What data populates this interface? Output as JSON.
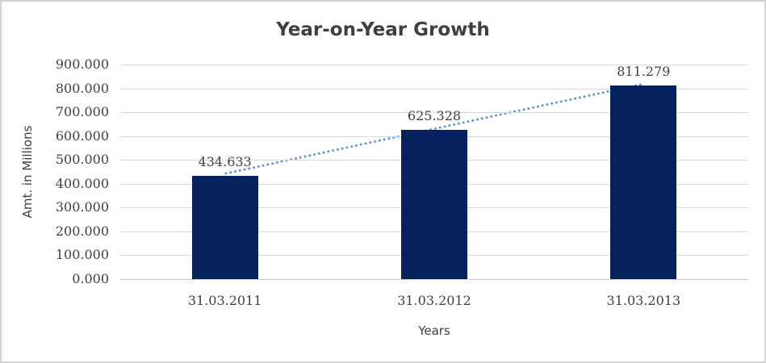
{
  "chart_data": {
    "type": "bar",
    "title": "Year-on-Year Growth",
    "xlabel": "Years",
    "ylabel": "Amt. in Millions",
    "categories": [
      "31.03.2011",
      "31.03.2012",
      "31.03.2013"
    ],
    "values": [
      434.633,
      625.328,
      811.279
    ],
    "data_labels": [
      "434.633",
      "625.328",
      "811.279"
    ],
    "y_ticks": [
      {
        "value": 0,
        "label": "0.000"
      },
      {
        "value": 100,
        "label": "100.000"
      },
      {
        "value": 200,
        "label": "200.000"
      },
      {
        "value": 300,
        "label": "300.000"
      },
      {
        "value": 400,
        "label": "400.000"
      },
      {
        "value": 500,
        "label": "500.000"
      },
      {
        "value": 600,
        "label": "600.000"
      },
      {
        "value": 700,
        "label": "700.000"
      },
      {
        "value": 800,
        "label": "800.000"
      },
      {
        "value": 900,
        "label": "900.000"
      }
    ],
    "ylim": [
      0,
      900
    ],
    "grid": "horizontal",
    "legend": "none",
    "trendline": {
      "type": "linear",
      "style": "dotted",
      "color": "#4e90d8"
    },
    "colors": {
      "bar": "#06225e",
      "gridline": "#d9d9d9",
      "axis_line": "#c6c6c6",
      "text": "#404040",
      "title": "#3f3f3f",
      "frame_border": "#d3d3d3",
      "background": "#ffffff"
    }
  }
}
